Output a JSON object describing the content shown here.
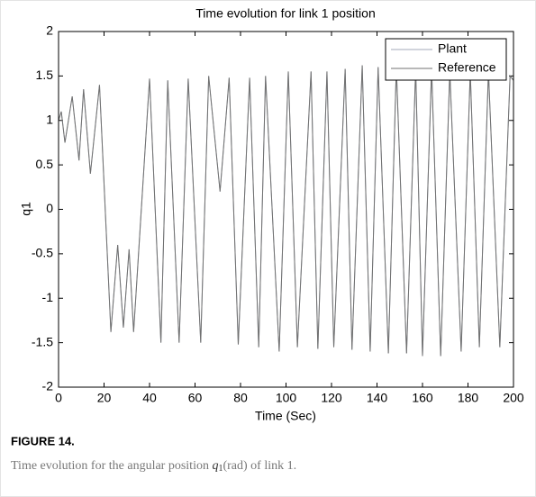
{
  "chart_data": {
    "type": "line",
    "title": "Time evolution for link 1 position",
    "x_label": "Time (Sec)",
    "y_label": "q1",
    "x": [
      0,
      1.2,
      2.8,
      6,
      9,
      11,
      14,
      18,
      23,
      26,
      28.5,
      31,
      33,
      40,
      45,
      48,
      53,
      57,
      62.5,
      66,
      71,
      75,
      79,
      84,
      88,
      91,
      97,
      101,
      105,
      111,
      114,
      118,
      121,
      126,
      129,
      133.5,
      137,
      140.5,
      145,
      148.5,
      153,
      157,
      160,
      164,
      168,
      172,
      177,
      181,
      185,
      189,
      194,
      198.5,
      200
    ],
    "series": [
      {
        "name": "Plant",
        "color": "#a3aab8",
        "values": [
          1.0,
          1.1,
          0.75,
          1.27,
          0.55,
          1.35,
          0.4,
          1.4,
          -1.38,
          -0.4,
          -1.33,
          -0.45,
          -1.38,
          1.47,
          -1.5,
          1.45,
          -1.5,
          1.47,
          -1.5,
          1.5,
          0.2,
          1.48,
          -1.52,
          1.48,
          -1.55,
          1.5,
          -1.6,
          1.55,
          -1.55,
          1.55,
          -1.57,
          1.55,
          -1.55,
          1.58,
          -1.58,
          1.62,
          -1.6,
          1.6,
          -1.62,
          1.6,
          -1.62,
          1.58,
          -1.65,
          1.58,
          -1.65,
          1.55,
          -1.6,
          1.55,
          -1.55,
          1.55,
          -1.55,
          1.5,
          1.45
        ]
      },
      {
        "name": "Reference",
        "color": "#707070",
        "values": [
          1.0,
          1.1,
          0.75,
          1.27,
          0.55,
          1.35,
          0.4,
          1.4,
          -1.38,
          -0.4,
          -1.33,
          -0.45,
          -1.38,
          1.47,
          -1.5,
          1.45,
          -1.5,
          1.47,
          -1.5,
          1.5,
          0.2,
          1.48,
          -1.52,
          1.48,
          -1.55,
          1.5,
          -1.6,
          1.55,
          -1.55,
          1.55,
          -1.57,
          1.55,
          -1.55,
          1.58,
          -1.58,
          1.62,
          -1.6,
          1.6,
          -1.62,
          1.6,
          -1.62,
          1.58,
          -1.65,
          1.58,
          -1.65,
          1.55,
          -1.6,
          1.55,
          -1.55,
          1.55,
          -1.55,
          1.5,
          1.45
        ]
      }
    ],
    "xlim": [
      0,
      200
    ],
    "xticks": [
      0,
      20,
      40,
      60,
      80,
      100,
      120,
      140,
      160,
      180,
      200
    ],
    "ylim": [
      -2,
      2
    ],
    "yticks": [
      -2,
      -1.5,
      -1,
      -0.5,
      0,
      0.5,
      1,
      1.5,
      2
    ],
    "grid": false,
    "legend": "upper right"
  },
  "figure": {
    "label": "FIGURE 14.",
    "caption_start": "Time evolution for the angular position",
    "symbol": "q",
    "subscript": "1",
    "caption_end": "(rad) of link 1."
  }
}
